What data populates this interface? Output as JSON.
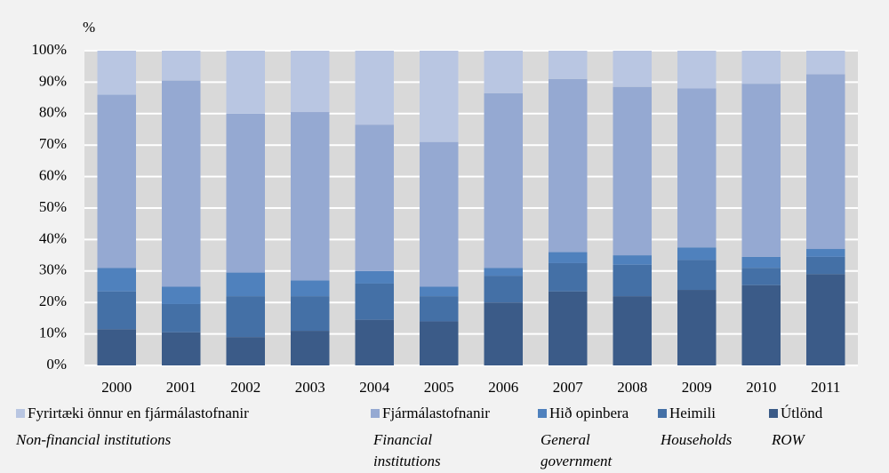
{
  "chart_data": {
    "type": "stacked_bar",
    "y_label": "%",
    "categories": [
      "2000",
      "2001",
      "2002",
      "2003",
      "2004",
      "2005",
      "2006",
      "2007",
      "2008",
      "2009",
      "2010",
      "2011"
    ],
    "series": [
      {
        "name": "Útlönd",
        "name_en": "ROW",
        "color": "#3b5b88",
        "values": [
          11.5,
          10.5,
          9,
          11,
          14.5,
          14,
          20,
          23.5,
          22,
          24,
          25.5,
          29
        ]
      },
      {
        "name": "Heimili",
        "name_en": "Households",
        "color": "#4470a6",
        "values": [
          12,
          9,
          13,
          11,
          11.5,
          8,
          8.5,
          9,
          10,
          9.5,
          5.5,
          5.5
        ]
      },
      {
        "name": "Hið opinbera",
        "name_en": "General government",
        "color": "#4f81bd",
        "values": [
          7.5,
          5.5,
          7.5,
          5,
          4,
          3,
          2.5,
          3.5,
          3,
          4,
          3.5,
          2.5
        ]
      },
      {
        "name": "Fjármálastofnanir",
        "name_en": "Financial institutions",
        "color": "#95a9d2",
        "values": [
          55,
          65.5,
          50.5,
          53.5,
          46.5,
          46,
          55.5,
          55,
          53.5,
          50.5,
          55,
          55.5
        ]
      },
      {
        "name": "Fyrirtæki önnur en fjármálastofnanir",
        "name_en": "Non-financial institutions",
        "color": "#b9c6e2",
        "values": [
          14,
          9.5,
          20,
          19.5,
          23.5,
          29,
          13.5,
          9,
          11.5,
          12,
          10.5,
          7.5
        ]
      }
    ],
    "ylim": [
      0,
      100
    ],
    "yticks": [
      {
        "value": 0,
        "label": "0%"
      },
      {
        "value": 10,
        "label": "10%"
      },
      {
        "value": 20,
        "label": "20%"
      },
      {
        "value": 30,
        "label": "30%"
      },
      {
        "value": 40,
        "label": "40%"
      },
      {
        "value": 50,
        "label": "50%"
      },
      {
        "value": 60,
        "label": "60%"
      },
      {
        "value": 70,
        "label": "70%"
      },
      {
        "value": 80,
        "label": "80%"
      },
      {
        "value": 90,
        "label": "90%"
      },
      {
        "value": 100,
        "label": "100%"
      }
    ],
    "grid": true
  }
}
